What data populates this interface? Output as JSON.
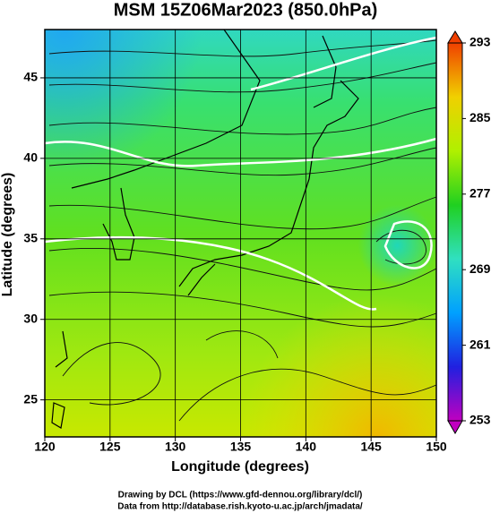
{
  "title": "MSM 15Z06Mar2023 (850.0hPa)",
  "x_axis": {
    "label": "Longitude (degrees)",
    "lim": [
      120,
      150
    ],
    "ticks": [
      120,
      125,
      130,
      135,
      140,
      145,
      150
    ]
  },
  "y_axis": {
    "label": "Latitude  (degrees)",
    "lim": [
      22.7,
      48
    ],
    "ticks": [
      25,
      30,
      35,
      40,
      45
    ]
  },
  "colorbar": {
    "lim": [
      253,
      293
    ],
    "ticks": [
      253,
      261,
      269,
      277,
      285,
      293
    ],
    "colors": [
      "#c000c0",
      "#2020e0",
      "#00a0ff",
      "#30e0c0",
      "#20d020",
      "#b0f000",
      "#f0d000",
      "#f04000"
    ]
  },
  "credits": [
    "Drawing by DCL (https://www.gfd-dennou.org/library/dcl/)",
    "Data from http://database.rish.kyoto-u.ac.jp/arch/jmadata/"
  ]
}
